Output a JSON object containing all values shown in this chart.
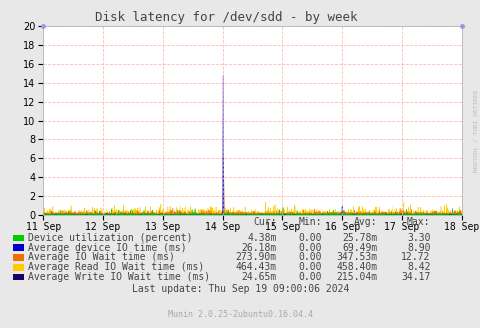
{
  "title": "Disk latency for /dev/sdd - by week",
  "background_color": "#e8e8e8",
  "plot_bg_color": "#ffffff",
  "grid_color": "#ffaaaa",
  "ylim": [
    0,
    20
  ],
  "xtick_labels": [
    "11 Sep",
    "12 Sep",
    "13 Sep",
    "14 Sep",
    "15 Sep",
    "16 Sep",
    "17 Sep",
    "18 Sep"
  ],
  "xtick_positions": [
    0,
    1,
    2,
    3,
    4,
    5,
    6,
    7
  ],
  "sidebar_text": "RRDTOOL / TOBI OETIKER",
  "legend": [
    {
      "label": "Device utilization (percent)",
      "color": "#00cc00"
    },
    {
      "label": "Average device IO time (ms)",
      "color": "#0000cc"
    },
    {
      "label": "Average IO Wait time (ms)",
      "color": "#f07000"
    },
    {
      "label": "Average Read IO Wait time (ms)",
      "color": "#ffcc00"
    },
    {
      "label": "Average Write IO Wait time (ms)",
      "color": "#1a0066"
    }
  ],
  "table_rows": [
    [
      "4.38m",
      "0.00",
      "25.78m",
      "3.30"
    ],
    [
      "26.18m",
      "0.00",
      "69.49m",
      "8.90"
    ],
    [
      "273.90m",
      "0.00",
      "347.53m",
      "12.72"
    ],
    [
      "464.43m",
      "0.00",
      "458.40m",
      "8.42"
    ],
    [
      "24.65m",
      "0.00",
      "215.04m",
      "34.17"
    ]
  ],
  "last_update": "Last update: Thu Sep 19 09:00:06 2024",
  "footer": "Munin 2.0.25-2ubuntu0.16.04.4"
}
